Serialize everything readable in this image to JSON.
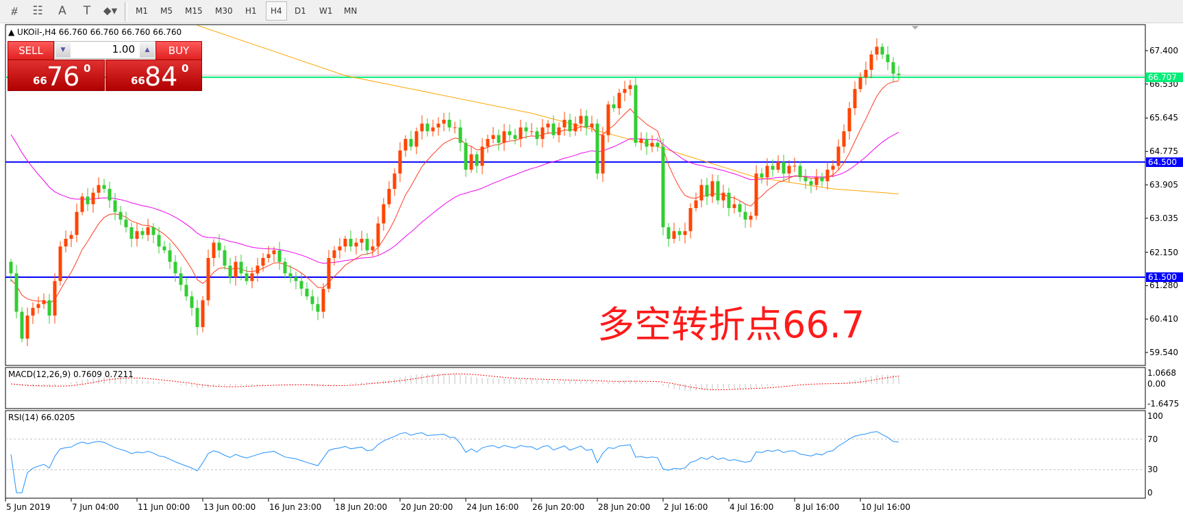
{
  "toolbar": {
    "tools": [
      {
        "icon": "fibonacci-expansion-icon",
        "glyph": "⧣"
      },
      {
        "icon": "fibonacci-fan-icon",
        "glyph": "☷"
      },
      {
        "icon": "text-icon",
        "glyph": "A"
      },
      {
        "icon": "text-label-icon",
        "glyph": "T"
      },
      {
        "icon": "arrows-dropdown-icon",
        "glyph": "⬥▾"
      }
    ],
    "timeframes": [
      "M1",
      "M5",
      "M15",
      "M30",
      "H1",
      "H4",
      "D1",
      "W1",
      "MN"
    ],
    "active_timeframe": "H4"
  },
  "legend": {
    "text": "▲ UKOil-,H4  66.760 66.760 66.760 66.760"
  },
  "trade_panel": {
    "sell_label": "SELL",
    "buy_label": "BUY",
    "lot": "1.00",
    "sell_price": {
      "prefix": "66",
      "main": "76",
      "sup": "0"
    },
    "buy_price": {
      "prefix": "66",
      "main": "84",
      "sup": "0"
    }
  },
  "annotation": "多空转折点66.7",
  "colors": {
    "up": "#ff4500",
    "down": "#32cd32",
    "level": "#0000ff",
    "pivot": "#00ee76",
    "ma_fast": "#ff3b1f",
    "ma_mid": "#ee00ee",
    "ma_slow": "#ffa500",
    "rsi": "#1e90ff",
    "macd_signal": "#ff0000",
    "macd_hist": "#c0c0c0"
  },
  "chart_data": {
    "type": "candlestick",
    "symbol": "UKOil-",
    "timeframe": "H4",
    "price_ticks": [
      "67.400",
      "66.530",
      "65.645",
      "64.775",
      "63.905",
      "63.035",
      "62.150",
      "61.280",
      "60.410",
      "59.540"
    ],
    "ylim": [
      59.2,
      68.1
    ],
    "levels": [
      {
        "value": "64.500",
        "kind": "level"
      },
      {
        "value": "61.500",
        "kind": "level"
      },
      {
        "value": "66.707",
        "kind": "pivot"
      }
    ],
    "bid": "66.760",
    "date_ticks": [
      "5 Jun 2019",
      "7 Jun 04:00",
      "11 Jun 00:00",
      "13 Jun 00:00",
      "16 Jun 23:00",
      "18 Jun 20:00",
      "20 Jun 20:00",
      "24 Jun 16:00",
      "26 Jun 20:00",
      "28 Jun 20:00",
      "2 Jul 16:00",
      "4 Jul 16:00",
      "8 Jul 16:00",
      "10 Jul 16:00"
    ],
    "closes": [
      61.6,
      60.6,
      59.9,
      60.5,
      60.7,
      60.8,
      60.9,
      60.5,
      61.4,
      62.3,
      62.5,
      62.6,
      63.2,
      63.6,
      63.4,
      63.7,
      63.9,
      63.8,
      63.5,
      63.2,
      63.0,
      62.8,
      62.5,
      62.7,
      62.6,
      62.8,
      62.6,
      62.3,
      62.2,
      61.9,
      61.6,
      61.3,
      61.0,
      60.7,
      60.2,
      60.9,
      62.0,
      62.4,
      62.2,
      61.8,
      61.5,
      61.9,
      61.6,
      61.4,
      61.6,
      61.8,
      62.0,
      62.1,
      62.2,
      61.9,
      61.6,
      61.5,
      61.4,
      61.2,
      61.0,
      60.8,
      60.6,
      61.2,
      62.0,
      62.2,
      62.3,
      62.5,
      62.3,
      62.4,
      62.5,
      62.2,
      62.3,
      62.9,
      63.4,
      63.8,
      64.2,
      64.8,
      65.1,
      64.9,
      65.3,
      65.5,
      65.3,
      65.4,
      65.5,
      65.6,
      65.4,
      65.4,
      65.0,
      64.3,
      64.7,
      64.4,
      64.9,
      65.1,
      65.2,
      65.0,
      65.3,
      65.2,
      65.1,
      65.4,
      65.3,
      65.3,
      65.1,
      65.4,
      65.5,
      65.2,
      65.4,
      65.6,
      65.3,
      65.5,
      65.7,
      65.4,
      65.5,
      64.2,
      65.2,
      66.0,
      65.9,
      66.3,
      66.4,
      66.5,
      65.0,
      65.1,
      64.9,
      65.0,
      64.9,
      62.8,
      62.5,
      62.7,
      62.6,
      62.7,
      63.3,
      63.5,
      63.9,
      63.6,
      64.0,
      63.5,
      63.7,
      63.3,
      63.4,
      63.2,
      63.0,
      63.1,
      64.2,
      64.1,
      64.4,
      64.3,
      64.5,
      64.2,
      64.4,
      64.4,
      64.1,
      64.0,
      63.9,
      64.1,
      64.0,
      64.3,
      64.4,
      64.9,
      65.3,
      65.9,
      66.4,
      66.7,
      66.9,
      67.3,
      67.5,
      67.3,
      67.1,
      66.8,
      66.76
    ],
    "ma_fast_start": 61.4,
    "ma_mid_start": 65.4,
    "ma_slow_points": [
      [
        34,
        68.1
      ],
      [
        61,
        66.75
      ],
      [
        95,
        65.77
      ],
      [
        118,
        64.9
      ],
      [
        136,
        64.1
      ],
      [
        150,
        63.8
      ],
      [
        162,
        63.67
      ]
    ],
    "macd": {
      "label": "MACD(12,26,9) 0.7609 0.7211",
      "ticks": [
        "1.0668",
        "0.00",
        "-1.6475"
      ]
    },
    "rsi": {
      "label": "RSI(14) 66.0205",
      "ticks": [
        "100",
        "70",
        "30",
        "0"
      ],
      "levels": [
        70,
        30
      ]
    }
  }
}
